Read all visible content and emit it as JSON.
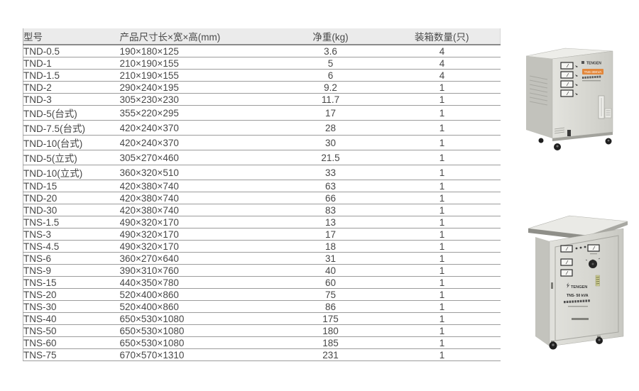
{
  "table": {
    "headers": [
      "型号",
      "产品尺寸长×宽×高(mm)",
      "净重(kg)",
      "装箱数量(只)"
    ],
    "rows": [
      [
        "TND-0.5",
        "190×180×125",
        "3.6",
        "4"
      ],
      [
        "TND-1",
        "210×190×155",
        "5",
        "4"
      ],
      [
        "TND-1.5",
        "210×190×155",
        "6",
        "4"
      ],
      [
        "TND-2",
        "290×240×195",
        "9.2",
        "1"
      ],
      [
        "TND-3",
        "305×230×230",
        "11.7",
        "1"
      ],
      [
        "TND-5(台式)",
        "355×220×295",
        "17",
        "1"
      ],
      [
        "TND-7.5(台式)",
        "420×240×370",
        "28",
        "1"
      ],
      [
        "TND-10(台式)",
        "420×240×370",
        "30",
        "1"
      ],
      [
        "TND-5(立式)",
        "305×270×460",
        "21.5",
        "1"
      ],
      [
        "TND-10(立式)",
        "360×320×510",
        "33",
        "1"
      ],
      [
        "TND-15",
        "420×380×740",
        "63",
        "1"
      ],
      [
        "TND-20",
        "420×380×740",
        "66",
        "1"
      ],
      [
        "TND-30",
        "420×380×740",
        "83",
        "1"
      ],
      [
        "TNS-1.5",
        "490×320×170",
        "13",
        "1"
      ],
      [
        "TNS-3",
        "490×320×170",
        "17",
        "1"
      ],
      [
        "TNS-4.5",
        "490×320×170",
        "18",
        "1"
      ],
      [
        "TNS-6",
        "360×270×640",
        "31",
        "1"
      ],
      [
        "TNS-9",
        "390×310×760",
        "40",
        "1"
      ],
      [
        "TNS-15",
        "440×350×780",
        "60",
        "1"
      ],
      [
        "TNS-20",
        "520×400×860",
        "75",
        "1"
      ],
      [
        "TNS-30",
        "520×400×860",
        "86",
        "1"
      ],
      [
        "TNS-40",
        "650×530×1080",
        "175",
        "1"
      ],
      [
        "TNS-50",
        "650×530×1080",
        "180",
        "1"
      ],
      [
        "TNS-60",
        "650×530×1080",
        "185",
        "1"
      ],
      [
        "TNS-75",
        "670×570×1310",
        "231",
        "1"
      ]
    ]
  },
  "products": {
    "top": {
      "brand": "TENGEN",
      "badge": "TNS-30KVA"
    },
    "bottom": {
      "brand": "TENGEN",
      "model": "TNS- 50 kVA"
    }
  },
  "colors": {
    "header_bg": "#ebebeb",
    "grid_line": "#9c9c9c",
    "text": "#474747",
    "badge_orange": "#e2873b",
    "cabinet_light": "#dadad5"
  }
}
